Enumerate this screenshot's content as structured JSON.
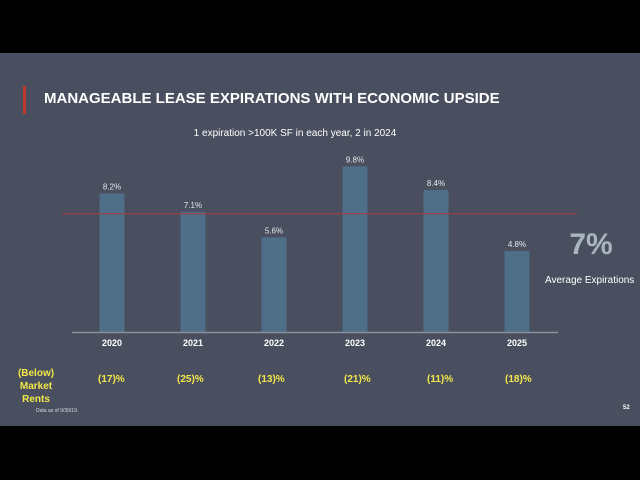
{
  "slide": {
    "title": "MANAGEABLE LEASE EXPIRATIONS WITH ECONOMIC UPSIDE",
    "subtitle": "1 expiration >100K SF in each year, 2 in 2024",
    "average": {
      "value": "7%",
      "label": "Average Expirations"
    },
    "market_rents": {
      "label_line1": "(Below)",
      "label_line2": "Market Rents",
      "values": [
        "(17)%",
        "(25)%",
        "(13)%",
        "(21)%",
        "(11)%",
        "(18)%"
      ]
    },
    "footnote": "Data as of 9/30/19.",
    "page_number": "52"
  },
  "colors": {
    "background": "#4a4f5f",
    "bar": "#4f6e88",
    "accent": "#c0392b",
    "average_line": "#a83a3a",
    "highlight_text": "#f3e84a"
  },
  "chart_data": {
    "type": "bar",
    "title": "",
    "xlabel": "",
    "ylabel": "",
    "categories": [
      "2020",
      "2021",
      "2022",
      "2023",
      "2024",
      "2025"
    ],
    "values": [
      8.2,
      7.1,
      5.6,
      9.8,
      8.4,
      4.8
    ],
    "labels": [
      "8.2%",
      "7.1%",
      "5.6%",
      "9.8%",
      "8.4%",
      "4.8%"
    ],
    "ylim": [
      0,
      10
    ],
    "reference_line": {
      "value": 7,
      "label": "Average Expirations"
    },
    "grid": false,
    "legend": "none"
  }
}
